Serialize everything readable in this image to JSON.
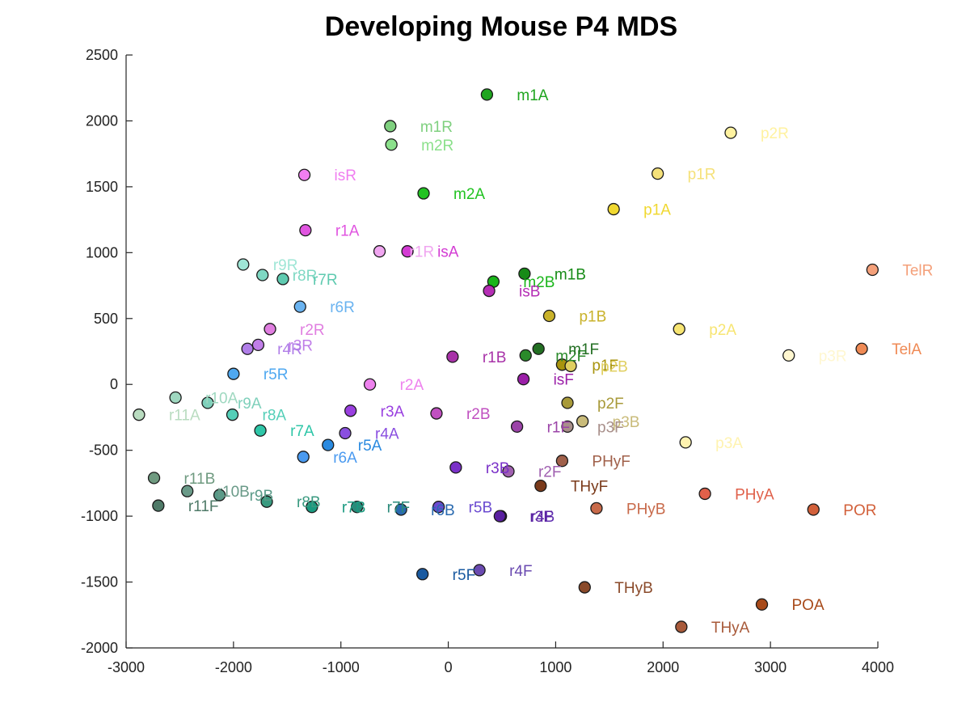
{
  "chart_data": {
    "type": "scatter",
    "title": "Developing Mouse P4 MDS",
    "xlabel": "",
    "ylabel": "",
    "xlim": [
      -3000,
      4000
    ],
    "ylim": [
      -2000,
      2500
    ],
    "xticks": [
      "-3000",
      "-2000",
      "-1000",
      "0",
      "1000",
      "2000",
      "3000",
      "4000"
    ],
    "yticks": [
      "-2000",
      "-1500",
      "-1000",
      "-500",
      "0",
      "500",
      "1000",
      "1500",
      "2000",
      "2500"
    ],
    "grid": false,
    "legend": "none",
    "points": [
      {
        "label": "m1A",
        "x": 360,
        "y": 2200,
        "color": "#1fa51f"
      },
      {
        "label": "m1R",
        "x": -540,
        "y": 1960,
        "color": "#7fd07f"
      },
      {
        "label": "m2R",
        "x": -530,
        "y": 1820,
        "color": "#8be08b"
      },
      {
        "label": "p2R",
        "x": 2630,
        "y": 1910,
        "color": "#fff2a0"
      },
      {
        "label": "isR",
        "x": -1340,
        "y": 1590,
        "color": "#f07ef0"
      },
      {
        "label": "m2A",
        "x": -230,
        "y": 1450,
        "color": "#22c322"
      },
      {
        "label": "p1R",
        "x": 1950,
        "y": 1600,
        "color": "#f5e17a"
      },
      {
        "label": "p1A",
        "x": 1540,
        "y": 1330,
        "color": "#f0d830"
      },
      {
        "label": "r1A",
        "x": -1330,
        "y": 1170,
        "color": "#e055e0"
      },
      {
        "label": "r1R",
        "x": -640,
        "y": 1010,
        "color": "#f0a6f0"
      },
      {
        "label": "isA",
        "x": -380,
        "y": 1010,
        "color": "#d33bd3"
      },
      {
        "label": "r9R",
        "x": -1910,
        "y": 910,
        "color": "#9fe6d6"
      },
      {
        "label": "r8R",
        "x": -1730,
        "y": 830,
        "color": "#7fd8c3"
      },
      {
        "label": "r7R",
        "x": -1540,
        "y": 800,
        "color": "#5fcab0"
      },
      {
        "label": "TelR",
        "x": 3950,
        "y": 870,
        "color": "#f4a07a"
      },
      {
        "label": "m1B",
        "x": 710,
        "y": 840,
        "color": "#178b17"
      },
      {
        "label": "m2B",
        "x": 420,
        "y": 780,
        "color": "#1ab51a"
      },
      {
        "label": "isB",
        "x": 380,
        "y": 710,
        "color": "#b52eb5"
      },
      {
        "label": "r6R",
        "x": -1380,
        "y": 590,
        "color": "#6ab3f0"
      },
      {
        "label": "p1B",
        "x": 940,
        "y": 520,
        "color": "#c9b22a"
      },
      {
        "label": "p2A",
        "x": 2150,
        "y": 420,
        "color": "#f7e572"
      },
      {
        "label": "r2R",
        "x": -1660,
        "y": 420,
        "color": "#e07ee0"
      },
      {
        "label": "r3R",
        "x": -1770,
        "y": 300,
        "color": "#c07ee8"
      },
      {
        "label": "r4R",
        "x": -1870,
        "y": 270,
        "color": "#b07ee8"
      },
      {
        "label": "p3R",
        "x": 3170,
        "y": 220,
        "color": "#fff7d0"
      },
      {
        "label": "TelA",
        "x": 3850,
        "y": 270,
        "color": "#ef8a55"
      },
      {
        "label": "r1B",
        "x": 40,
        "y": 210,
        "color": "#a832a8"
      },
      {
        "label": "m2F",
        "x": 720,
        "y": 220,
        "color": "#2a8a2a"
      },
      {
        "label": "m1F",
        "x": 840,
        "y": 270,
        "color": "#236f23"
      },
      {
        "label": "p1F",
        "x": 1060,
        "y": 150,
        "color": "#a8940e"
      },
      {
        "label": "p2B",
        "x": 1140,
        "y": 140,
        "color": "#e0cf60"
      },
      {
        "label": "r5R",
        "x": -2000,
        "y": 80,
        "color": "#4fa8f0"
      },
      {
        "label": "isF",
        "x": 700,
        "y": 40,
        "color": "#9b1fa8"
      },
      {
        "label": "r2A",
        "x": -730,
        "y": 0,
        "color": "#ee82ee"
      },
      {
        "label": "r11A",
        "x": -2880,
        "y": -230,
        "color": "#b9dcc0"
      },
      {
        "label": "r10A",
        "x": -2540,
        "y": -100,
        "color": "#9fd8c0"
      },
      {
        "label": "r9A",
        "x": -2240,
        "y": -140,
        "color": "#7fd0bb"
      },
      {
        "label": "r8A",
        "x": -2010,
        "y": -230,
        "color": "#55cfb8"
      },
      {
        "label": "r7A",
        "x": -1750,
        "y": -350,
        "color": "#2fc6a8"
      },
      {
        "label": "r3A",
        "x": -910,
        "y": -200,
        "color": "#9a40e0"
      },
      {
        "label": "r2B",
        "x": -110,
        "y": -220,
        "color": "#c050c0"
      },
      {
        "label": "p2F",
        "x": 1110,
        "y": -140,
        "color": "#a89a3a"
      },
      {
        "label": "p3B",
        "x": 1250,
        "y": -280,
        "color": "#c9bb7a"
      },
      {
        "label": "r1F",
        "x": 640,
        "y": -320,
        "color": "#9b44a8"
      },
      {
        "label": "p3F",
        "x": 1110,
        "y": -320,
        "color": "#a88f8a"
      },
      {
        "label": "r4A",
        "x": -960,
        "y": -370,
        "color": "#8a4fe0"
      },
      {
        "label": "r5A",
        "x": -1120,
        "y": -460,
        "color": "#2a8ae0"
      },
      {
        "label": "p3A",
        "x": 2210,
        "y": -440,
        "color": "#fff3b0"
      },
      {
        "label": "r6A",
        "x": -1350,
        "y": -550,
        "color": "#4a9af0"
      },
      {
        "label": "PHyF",
        "x": 1060,
        "y": -580,
        "color": "#a0604a"
      },
      {
        "label": "r3B",
        "x": 70,
        "y": -630,
        "color": "#7a30c8"
      },
      {
        "label": "r2F",
        "x": 560,
        "y": -660,
        "color": "#a060b0"
      },
      {
        "label": "THyF",
        "x": 860,
        "y": -770,
        "color": "#7a3a1a"
      },
      {
        "label": "r11B",
        "x": -2740,
        "y": -710,
        "color": "#6f9a80"
      },
      {
        "label": "r10B",
        "x": -2430,
        "y": -810,
        "color": "#6a9a88"
      },
      {
        "label": "r9B",
        "x": -2130,
        "y": -840,
        "color": "#5a9a88"
      },
      {
        "label": "r8B",
        "x": -1690,
        "y": -890,
        "color": "#3a9a80"
      },
      {
        "label": "r11F",
        "x": -2700,
        "y": -920,
        "color": "#4f7a68"
      },
      {
        "label": "r7B",
        "x": -1270,
        "y": -930,
        "color": "#1a9a80"
      },
      {
        "label": "r7F",
        "x": -850,
        "y": -930,
        "color": "#2a8a7a"
      },
      {
        "label": "r6B",
        "x": -440,
        "y": -950,
        "color": "#2a6ab0"
      },
      {
        "label": "r5B",
        "x": -90,
        "y": -930,
        "color": "#6a4ad0"
      },
      {
        "label": "r4B",
        "x": 490,
        "y": -1000,
        "color": "#6030b0"
      },
      {
        "label": "PHyA",
        "x": 2390,
        "y": -830,
        "color": "#e0604a"
      },
      {
        "label": "PHyB",
        "x": 1380,
        "y": -940,
        "color": "#c86a4a"
      },
      {
        "label": "POR",
        "x": 3400,
        "y": -950,
        "color": "#d2603a"
      },
      {
        "label": "r3F",
        "x": 480,
        "y": -1000,
        "color": "#5a20a0"
      },
      {
        "label": "r5F",
        "x": -240,
        "y": -1440,
        "color": "#1a5aa0"
      },
      {
        "label": "r4F",
        "x": 290,
        "y": -1410,
        "color": "#6a4ab0"
      },
      {
        "label": "THyB",
        "x": 1270,
        "y": -1540,
        "color": "#8a4a2a"
      },
      {
        "label": "POA",
        "x": 2920,
        "y": -1670,
        "color": "#a84a1a"
      },
      {
        "label": "THyA",
        "x": 2170,
        "y": -1840,
        "color": "#a85a3a"
      }
    ]
  }
}
